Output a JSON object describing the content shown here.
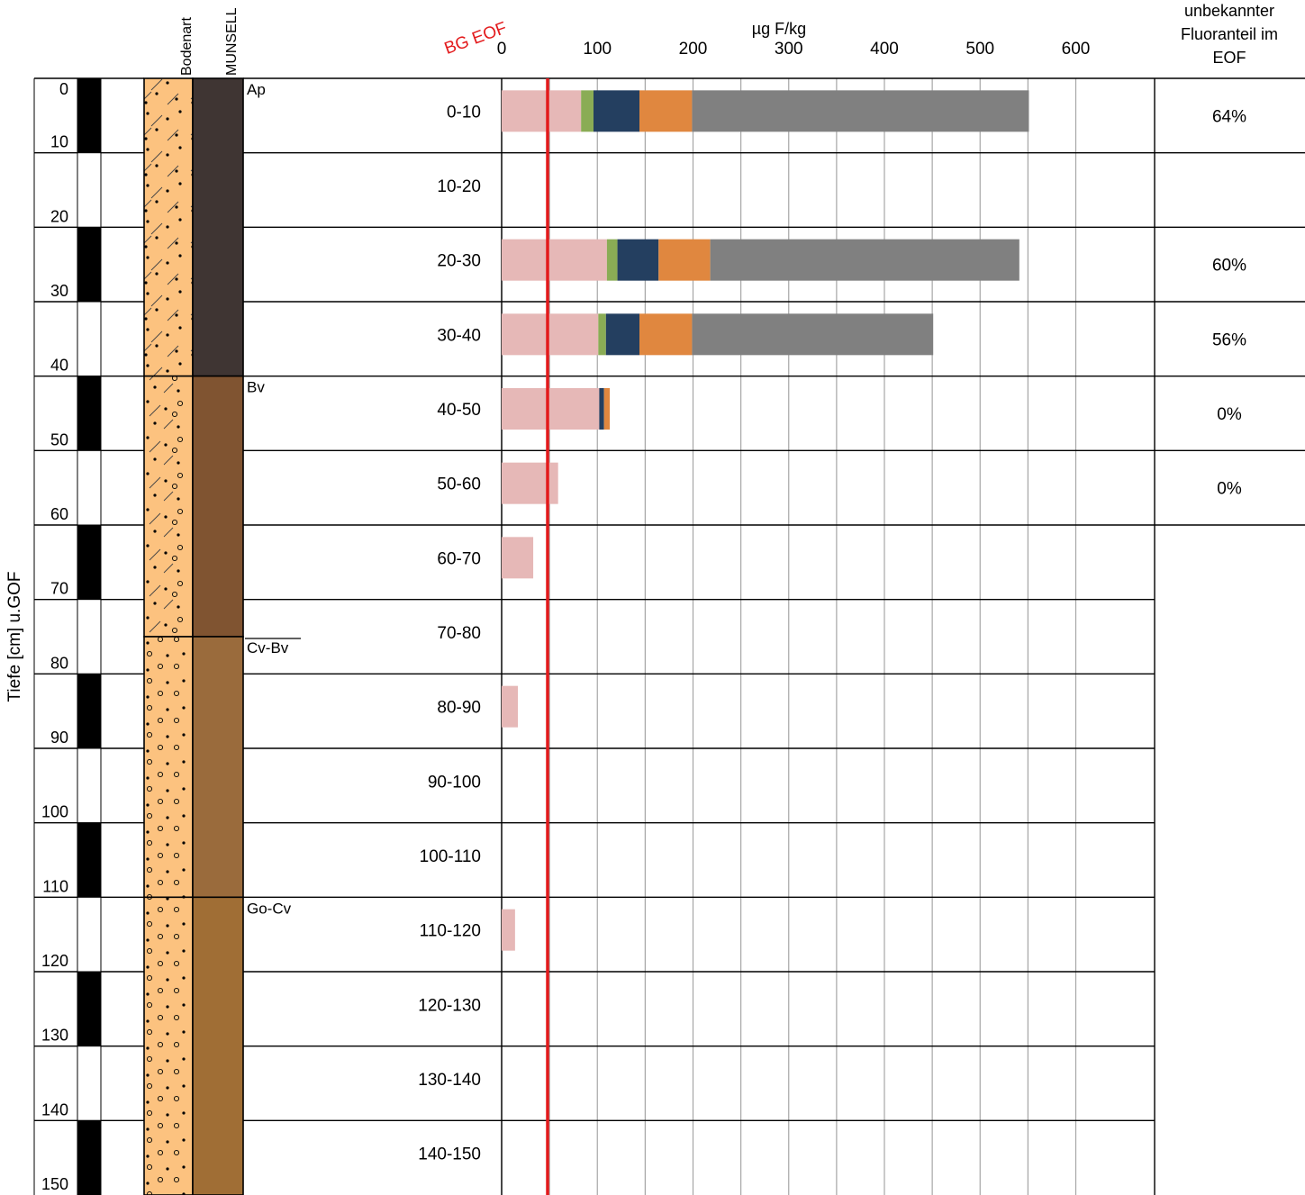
{
  "chart_data": {
    "type": "bar",
    "orientation": "horizontal",
    "stacked": true,
    "x_unit_label": "µg F/kg",
    "x_ticks": [
      0,
      100,
      200,
      300,
      400,
      500,
      600
    ],
    "xlim": [
      0,
      680
    ],
    "depth_axis_label": "Tiefe [cm] u.GOF",
    "depth_ticks": [
      0,
      10,
      20,
      30,
      40,
      50,
      60,
      70,
      80,
      90,
      100,
      110,
      120,
      130,
      140,
      150
    ],
    "ylim": [
      0,
      150
    ],
    "column_headers": {
      "soil_type": "Bodenart",
      "munsell": "MUNSELL"
    },
    "threshold": {
      "label": "BG EOF",
      "value": 48,
      "color": "#e31a1c"
    },
    "unknown_header": [
      "unbekannter",
      "Fluoranteil im",
      "EOF"
    ],
    "categories": [
      "0-10",
      "10-20",
      "20-30",
      "30-40",
      "40-50",
      "50-60",
      "60-70",
      "70-80",
      "80-90",
      "90-100",
      "100-110",
      "110-120",
      "120-130",
      "130-140",
      "140-150"
    ],
    "series": [
      {
        "color": "#e6b8b7",
        "values": [
          83,
          0,
          110,
          101,
          102,
          59,
          33,
          0,
          17,
          0,
          0,
          14,
          0,
          0,
          0
        ]
      },
      {
        "color": "#8aac55",
        "values": [
          13,
          0,
          11,
          8,
          0,
          0,
          0,
          0,
          0,
          0,
          0,
          0,
          0,
          0,
          0
        ]
      },
      {
        "color": "#243f60",
        "values": [
          48,
          0,
          43,
          35,
          5,
          0,
          0,
          0,
          0,
          0,
          0,
          0,
          0,
          0,
          0
        ]
      },
      {
        "color": "#e0873f",
        "values": [
          55,
          0,
          54,
          55,
          6,
          0,
          0,
          0,
          0,
          0,
          0,
          0,
          0,
          0,
          0
        ]
      },
      {
        "color": "#808080",
        "values": [
          352,
          0,
          323,
          252,
          0,
          0,
          0,
          0,
          0,
          0,
          0,
          0,
          0,
          0,
          0
        ]
      }
    ],
    "unknown_fraction": [
      "64%",
      "",
      "60%",
      "56%",
      "0%",
      "0%"
    ],
    "horizons": [
      {
        "name": "Ap",
        "top": 0,
        "bottom": 40,
        "munsell_color": "#3f3533",
        "texture": "sand-silt"
      },
      {
        "name": "Bv",
        "top": 40,
        "bottom": 75,
        "munsell_color": "#805431",
        "texture": "sand-silt-gravel"
      },
      {
        "name": "Cv-Bv",
        "top": 75,
        "bottom": 110,
        "munsell_color": "#9a6b3c",
        "texture": "sand-gravel"
      },
      {
        "name": "Go-Cv",
        "top": 110,
        "bottom": 150,
        "munsell_color": "#a06e35",
        "texture": "sand-gravel"
      }
    ],
    "grid": true
  }
}
